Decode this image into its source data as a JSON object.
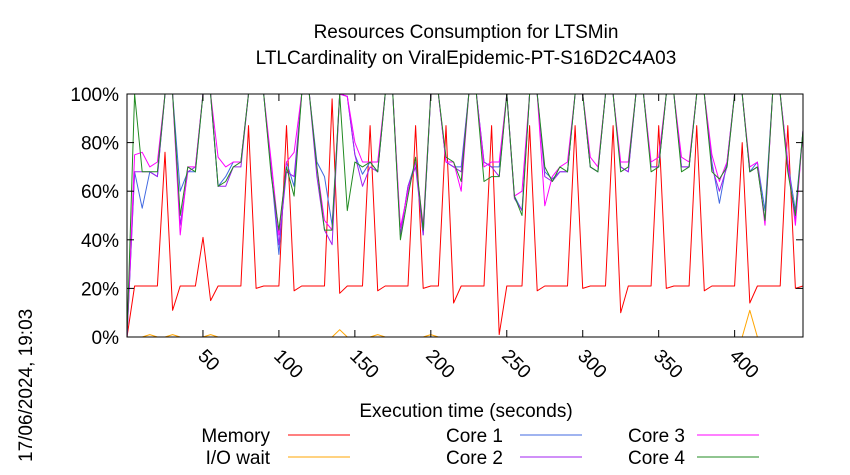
{
  "chart_data": {
    "type": "line",
    "title": [
      "Resources Consumption for LTSMin",
      "LTLCardinality on ViralEpidemic-PT-S16D2C4A03"
    ],
    "xlabel": "Execution time (seconds)",
    "ylabel": "",
    "xlim": [
      0,
      445
    ],
    "ylim": [
      0,
      100
    ],
    "x_ticks": [
      50,
      100,
      150,
      200,
      250,
      300,
      350,
      400
    ],
    "y_ticks": [
      0,
      20,
      40,
      60,
      80,
      100
    ],
    "y_tick_labels": [
      "0%",
      "20%",
      "40%",
      "60%",
      "80%",
      "100%"
    ],
    "grid": false,
    "legend": "bottom, three columns",
    "timestamp": "17/06/2024, 19:03",
    "x": [
      0,
      5,
      10,
      15,
      20,
      25,
      30,
      35,
      40,
      45,
      50,
      55,
      60,
      65,
      70,
      75,
      80,
      85,
      90,
      95,
      100,
      105,
      110,
      115,
      120,
      125,
      130,
      135,
      140,
      145,
      150,
      155,
      160,
      165,
      170,
      175,
      180,
      185,
      190,
      195,
      200,
      205,
      210,
      215,
      220,
      225,
      230,
      235,
      240,
      245,
      250,
      255,
      260,
      265,
      270,
      275,
      280,
      285,
      290,
      295,
      300,
      305,
      310,
      315,
      320,
      325,
      330,
      335,
      340,
      345,
      350,
      355,
      360,
      365,
      370,
      375,
      380,
      385,
      390,
      395,
      400,
      405,
      410,
      415,
      420,
      425,
      430,
      435,
      440,
      445
    ],
    "series": [
      {
        "name": "Memory",
        "color": "#ff0000",
        "values": [
          0,
          21,
          21,
          21,
          21,
          76,
          11,
          21,
          21,
          21,
          41,
          15,
          21,
          21,
          21,
          21,
          87,
          20,
          21,
          21,
          21,
          87,
          19,
          21,
          21,
          21,
          21,
          98,
          18,
          21,
          21,
          21,
          87,
          19,
          21,
          21,
          21,
          21,
          87,
          20,
          21,
          21,
          87,
          14,
          21,
          21,
          21,
          21,
          87,
          1,
          21,
          21,
          21,
          87,
          19,
          21,
          21,
          21,
          21,
          87,
          20,
          21,
          21,
          21,
          87,
          10,
          21,
          21,
          21,
          21,
          87,
          20,
          21,
          21,
          21,
          87,
          19,
          21,
          21,
          21,
          21,
          80,
          14,
          21,
          21,
          21,
          21,
          87,
          20,
          21
        ]
      },
      {
        "name": "I/O wait",
        "color": "#ffa500",
        "values": [
          0,
          0,
          0,
          1,
          0,
          0,
          1,
          0,
          0,
          0,
          0,
          1,
          0,
          0,
          0,
          0,
          0,
          0,
          0,
          0,
          0,
          0,
          0,
          0,
          0,
          0,
          0,
          0,
          3,
          0,
          0,
          0,
          0,
          1,
          0,
          0,
          0,
          0,
          0,
          0,
          1,
          0,
          0,
          0,
          0,
          0,
          0,
          0,
          0,
          0,
          0,
          0,
          0,
          0,
          0,
          0,
          0,
          0,
          0,
          0,
          0,
          0,
          0,
          0,
          0,
          0,
          0,
          0,
          0,
          0,
          0,
          0,
          0,
          0,
          0,
          0,
          0,
          0,
          0,
          0,
          0,
          0,
          11,
          0,
          0,
          0,
          0,
          0,
          0,
          0
        ]
      },
      {
        "name": "Core 1",
        "color": "#4169e1",
        "values": [
          0,
          68,
          53,
          68,
          66,
          100,
          100,
          60,
          68,
          68,
          100,
          100,
          62,
          66,
          72,
          72,
          100,
          100,
          100,
          68,
          34,
          72,
          62,
          100,
          100,
          72,
          66,
          46,
          100,
          99,
          75,
          67,
          72,
          68,
          100,
          100,
          42,
          62,
          72,
          42,
          100,
          100,
          72,
          70,
          70,
          100,
          100,
          72,
          70,
          70,
          100,
          58,
          52,
          100,
          100,
          68,
          65,
          68,
          68,
          100,
          100,
          70,
          68,
          100,
          100,
          70,
          68,
          100,
          100,
          70,
          70,
          100,
          100,
          70,
          70,
          100,
          100,
          72,
          55,
          72,
          100,
          100,
          68,
          72,
          52,
          100,
          100,
          72,
          52,
          85
        ]
      },
      {
        "name": "Core 2",
        "color": "#a020f0",
        "values": [
          0,
          68,
          68,
          68,
          66,
          100,
          100,
          46,
          68,
          70,
          100,
          100,
          62,
          62,
          70,
          70,
          100,
          100,
          100,
          68,
          38,
          68,
          66,
          100,
          100,
          66,
          44,
          38,
          100,
          99,
          75,
          62,
          70,
          68,
          100,
          100,
          42,
          62,
          70,
          42,
          100,
          100,
          72,
          70,
          68,
          100,
          100,
          72,
          70,
          66,
          100,
          57,
          52,
          100,
          100,
          66,
          64,
          68,
          68,
          100,
          100,
          70,
          68,
          100,
          100,
          70,
          68,
          100,
          100,
          70,
          70,
          100,
          100,
          70,
          70,
          100,
          100,
          70,
          60,
          70,
          100,
          100,
          68,
          70,
          48,
          100,
          100,
          70,
          48,
          85
        ]
      },
      {
        "name": "Core 3",
        "color": "#ff00ff",
        "values": [
          0,
          75,
          76,
          70,
          72,
          100,
          100,
          42,
          70,
          70,
          100,
          100,
          74,
          70,
          72,
          72,
          100,
          100,
          100,
          72,
          42,
          72,
          76,
          100,
          100,
          70,
          48,
          44,
          100,
          99,
          80,
          72,
          72,
          72,
          100,
          100,
          45,
          60,
          72,
          46,
          100,
          100,
          72,
          72,
          60,
          100,
          100,
          70,
          72,
          72,
          100,
          58,
          60,
          100,
          100,
          54,
          66,
          70,
          72,
          100,
          100,
          74,
          70,
          100,
          100,
          72,
          72,
          100,
          100,
          72,
          74,
          100,
          100,
          74,
          72,
          100,
          100,
          75,
          64,
          72,
          100,
          100,
          70,
          72,
          46,
          100,
          100,
          72,
          46,
          85
        ]
      },
      {
        "name": "Core 4",
        "color": "#228b22",
        "values": [
          0,
          100,
          68,
          68,
          68,
          100,
          100,
          50,
          70,
          68,
          100,
          100,
          62,
          64,
          70,
          72,
          100,
          100,
          100,
          66,
          44,
          70,
          58,
          100,
          100,
          70,
          44,
          44,
          100,
          52,
          72,
          70,
          72,
          68,
          100,
          100,
          40,
          58,
          74,
          44,
          100,
          100,
          74,
          72,
          64,
          100,
          100,
          64,
          66,
          66,
          100,
          58,
          50,
          100,
          100,
          70,
          64,
          70,
          68,
          100,
          100,
          70,
          68,
          100,
          100,
          68,
          70,
          100,
          100,
          68,
          70,
          100,
          100,
          68,
          70,
          100,
          100,
          68,
          65,
          70,
          100,
          100,
          68,
          70,
          48,
          100,
          100,
          68,
          50,
          85
        ]
      }
    ]
  }
}
